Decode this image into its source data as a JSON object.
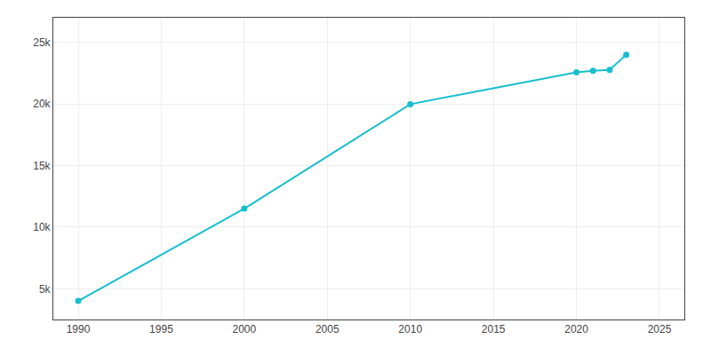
{
  "chart_data": {
    "type": "line",
    "x": [
      1990,
      2000,
      2010,
      2020,
      2021,
      2022,
      2023
    ],
    "values": [
      4010,
      11500,
      19983,
      22574,
      22694,
      22765,
      24000
    ],
    "color": "#17BECF",
    "marker": "circle",
    "line_style": "solid",
    "xlim": [
      1988.5,
      2026.5
    ],
    "xticks": [
      1990,
      1995,
      2000,
      2005,
      2010,
      2015,
      2020,
      2025
    ],
    "ylim": [
      2500,
      27000
    ],
    "yticks": [
      {
        "value": 5000,
        "label": "5k"
      },
      {
        "value": 10000,
        "label": "10k"
      },
      {
        "value": 15000,
        "label": "15k"
      },
      {
        "value": 20000,
        "label": "20k"
      },
      {
        "value": 25000,
        "label": "25k"
      }
    ],
    "grid": true
  }
}
